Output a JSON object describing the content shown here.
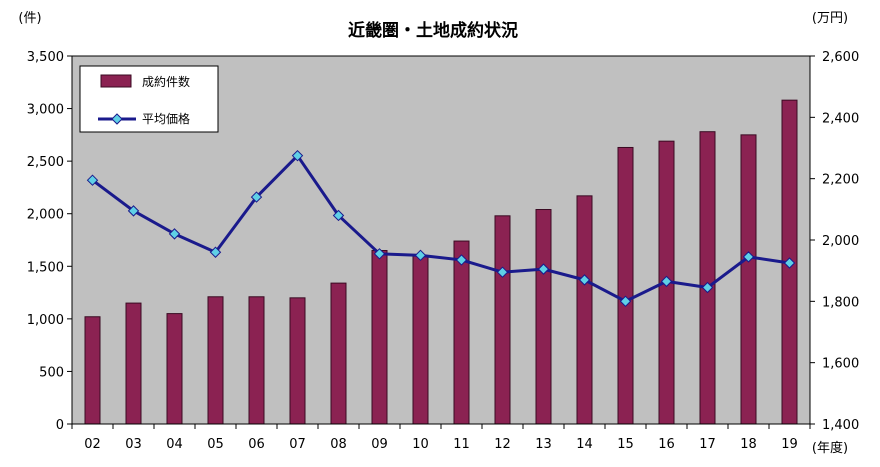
{
  "chart_data": {
    "type": "bar+line",
    "title": "近畿圏・土地成約状況",
    "left_unit": "(件)",
    "right_unit": "(万円)",
    "x_unit": "(年度)",
    "categories": [
      "02",
      "03",
      "04",
      "05",
      "06",
      "07",
      "08",
      "09",
      "10",
      "11",
      "12",
      "13",
      "14",
      "15",
      "16",
      "17",
      "18",
      "19"
    ],
    "left_ticks": [
      "0",
      "500",
      "1,000",
      "1,500",
      "2,000",
      "2,500",
      "3,000",
      "3,500"
    ],
    "right_ticks": [
      "1,400",
      "1,600",
      "1,800",
      "2,000",
      "2,200",
      "2,400",
      "2,600"
    ],
    "left_ylim": [
      0,
      3500
    ],
    "right_ylim": [
      1400,
      2600
    ],
    "grid": false,
    "legend_position": "top-left",
    "series": [
      {
        "name": "成約件数",
        "kind": "bar",
        "axis": "left",
        "values": [
          1020,
          1150,
          1050,
          1210,
          1210,
          1200,
          1340,
          1650,
          1600,
          1740,
          1980,
          2040,
          2170,
          2630,
          2690,
          2780,
          2750,
          3080
        ]
      },
      {
        "name": "平均価格",
        "kind": "line",
        "axis": "right",
        "values": [
          2195,
          2095,
          2020,
          1960,
          2140,
          2275,
          2080,
          1955,
          1950,
          1935,
          1895,
          1905,
          1870,
          1800,
          1865,
          1845,
          1945,
          1925
        ]
      }
    ],
    "colors": {
      "bar_fill": "#8B2252",
      "bar_stroke": "#3a0a22",
      "line": "#1a1a8c",
      "marker": "#5fd0e6",
      "plot_bg": "#c0c0c0"
    }
  }
}
